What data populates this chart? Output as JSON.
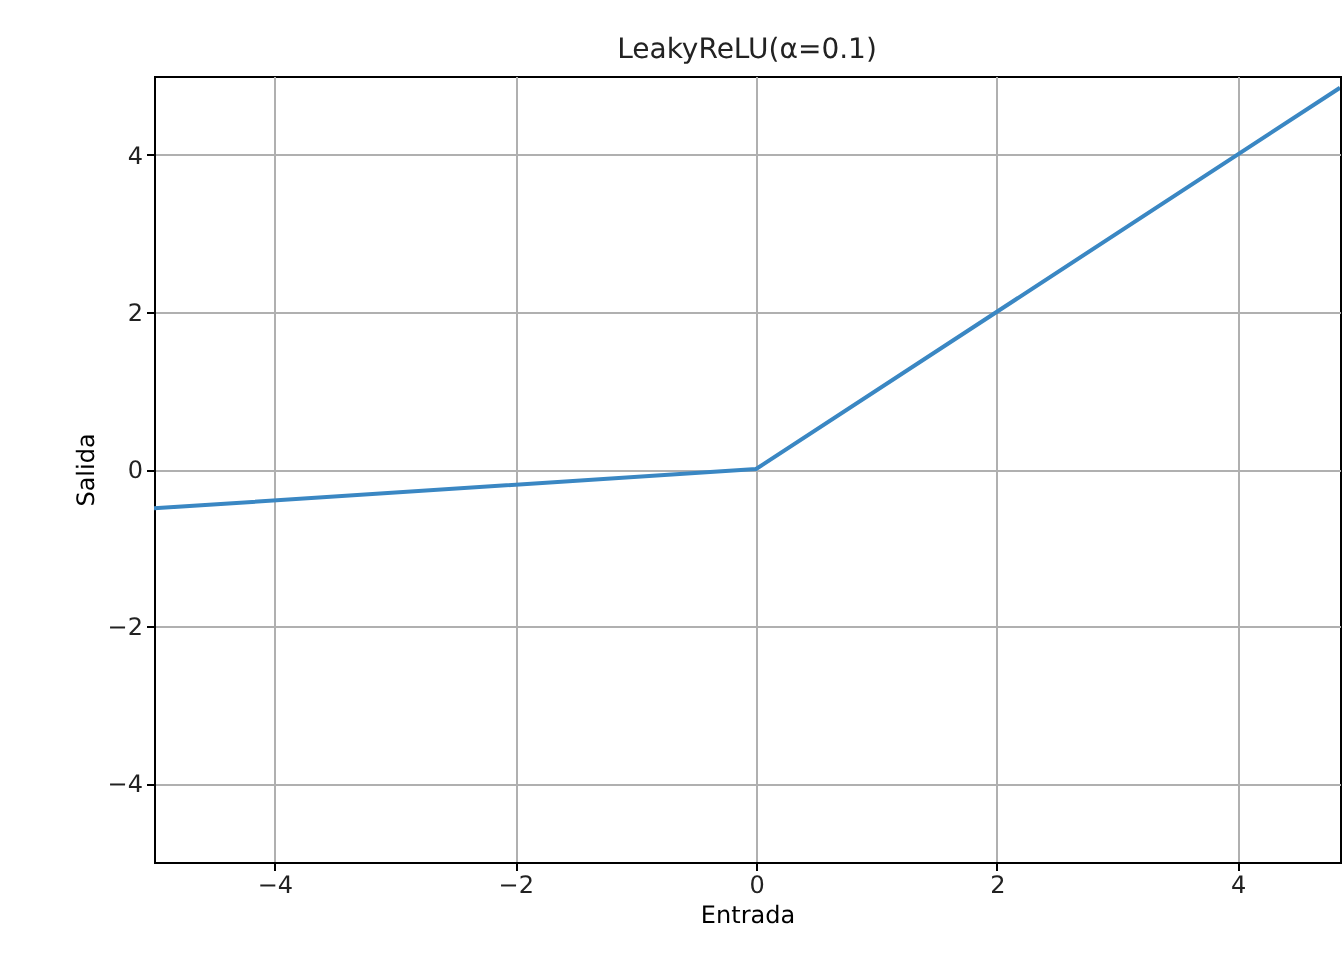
{
  "chart_data": {
    "type": "line",
    "title": "LeakyReLU(α=0.1)",
    "xlabel": "Entrada",
    "ylabel": "Salida",
    "series": [
      {
        "x": [
          -5,
          0,
          4.85
        ],
        "values": [
          -0.5,
          0,
          4.85
        ],
        "color": "#3a87c3"
      }
    ],
    "xlim": [
      -5,
      4.85
    ],
    "ylim": [
      -5,
      5
    ],
    "xticks": [
      -4,
      -2,
      0,
      2,
      4
    ],
    "yticks": [
      -4,
      -2,
      0,
      2,
      4
    ],
    "grid": true
  }
}
